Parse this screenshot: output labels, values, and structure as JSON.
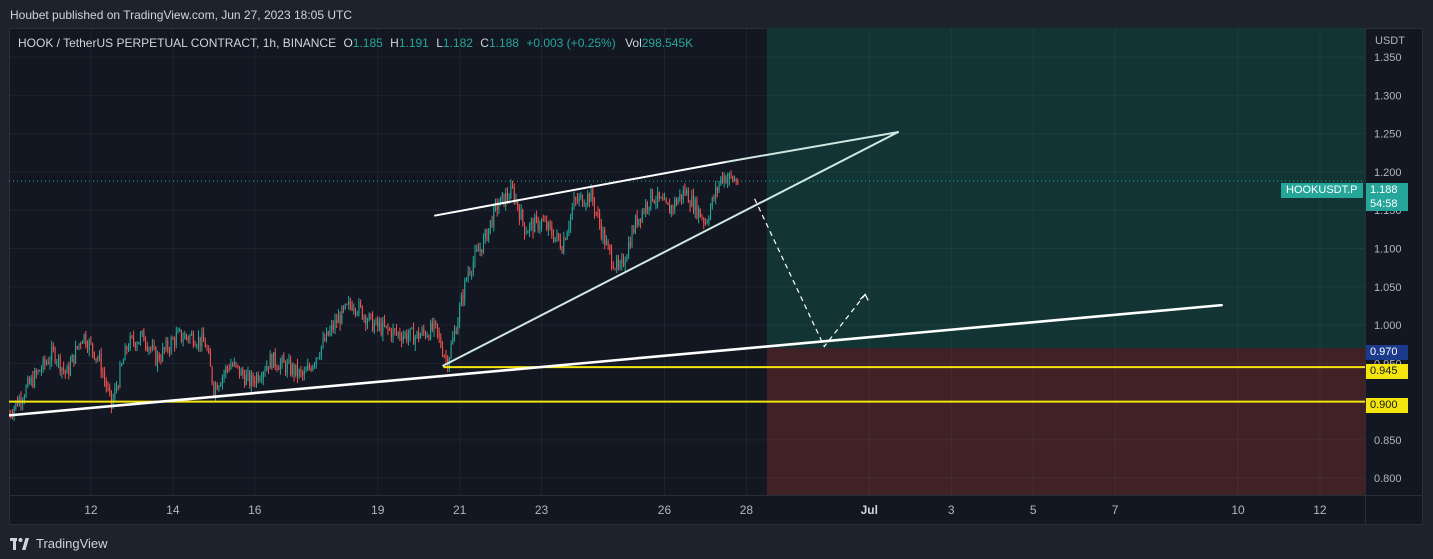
{
  "header": {
    "published_text": "Houbet published on TradingView.com, Jun 27, 2023 18:05 UTC"
  },
  "legend": {
    "symbol": "HOOK / TetherUS PERPETUAL CONTRACT, 1h, BINANCE",
    "o_label": "O",
    "o_value": "1.185",
    "h_label": "H",
    "h_value": "1.191",
    "l_label": "L",
    "l_value": "1.182",
    "c_label": "C",
    "c_value": "1.188",
    "change": "+0.003 (+0.25%)",
    "vol_label": "Vol",
    "vol_value": "298.545K"
  },
  "footer": {
    "brand": "TradingView"
  },
  "price_tags": {
    "symbol_tag": "HOOKUSDT.P",
    "last_price": "1.188",
    "countdown": "54:58",
    "stop_level": "0.970",
    "level_1": "0.945",
    "level_2": "0.900"
  },
  "colors": {
    "background": "#131722",
    "up": "#26a69a",
    "down": "#ef5350",
    "profit_zone": "#123434",
    "loss_zone": "#3f2126",
    "yellow_line": "#f5e50f",
    "white_line": "#ffffff"
  },
  "chart_data": {
    "type": "candlestick",
    "currency_label": "USDT",
    "y_ticks": [
      "1.350",
      "1.300",
      "1.250",
      "1.200",
      "1.150",
      "1.100",
      "1.050",
      "1.000",
      "0.950",
      "0.900",
      "0.850",
      "0.800"
    ],
    "y_range": [
      0.778,
      1.388
    ],
    "x_labels": [
      "12",
      "14",
      "16",
      "19",
      "21",
      "23",
      "26",
      "28",
      "Jul",
      "3",
      "5",
      "7",
      "10",
      "12"
    ],
    "x_label_days": [
      12,
      14,
      16,
      19,
      21,
      23,
      26,
      28,
      31,
      33,
      35,
      37,
      40,
      42
    ],
    "x_range_days": [
      10.0,
      43.1
    ],
    "bold_x_label": "Jul",
    "last_price": 1.188,
    "position": {
      "start_day": 28.5,
      "end_day": 43.1,
      "entry": 0.97,
      "target": 1.388,
      "stop": 0.778
    },
    "horizontal_levels": [
      {
        "price": 0.945,
        "from_day": 20.6,
        "color": "#f5e50f"
      },
      {
        "price": 0.9,
        "from_day": 10.0,
        "color": "#f5e50f"
      }
    ],
    "trendlines": [
      {
        "name": "long-support",
        "points": [
          [
            10.0,
            0.882
          ],
          [
            39.6,
            1.026
          ]
        ],
        "width": 2.6
      },
      {
        "name": "wedge-upper",
        "points": [
          [
            20.4,
            1.143
          ],
          [
            27.5,
            1.213
          ]
        ],
        "width": 2
      },
      {
        "name": "wedge-lower",
        "points": [
          [
            20.6,
            0.947
          ],
          [
            31.7,
            1.252
          ]
        ],
        "width": 2,
        "color": "#cfe8e3"
      },
      {
        "name": "wedge-top-ext",
        "points": [
          [
            27.5,
            1.213
          ],
          [
            31.7,
            1.252
          ]
        ],
        "width": 2,
        "color": "#cfe8e3"
      }
    ],
    "projection": [
      [
        28.2,
        1.165
      ],
      [
        29.9,
        0.972
      ],
      [
        30.9,
        1.04
      ]
    ],
    "price_anchors": [
      [
        10.0,
        0.885
      ],
      [
        10.6,
        0.93
      ],
      [
        11.1,
        0.965
      ],
      [
        11.4,
        0.935
      ],
      [
        11.8,
        0.988
      ],
      [
        12.2,
        0.955
      ],
      [
        12.5,
        0.895
      ],
      [
        12.9,
        0.975
      ],
      [
        13.3,
        0.985
      ],
      [
        13.6,
        0.955
      ],
      [
        14.1,
        0.985
      ],
      [
        14.5,
        0.985
      ],
      [
        14.8,
        0.975
      ],
      [
        15.0,
        0.918
      ],
      [
        15.4,
        0.95
      ],
      [
        15.9,
        0.925
      ],
      [
        16.4,
        0.955
      ],
      [
        16.8,
        0.945
      ],
      [
        17.2,
        0.932
      ],
      [
        17.6,
        0.97
      ],
      [
        18.0,
        1.005
      ],
      [
        18.4,
        1.03
      ],
      [
        18.9,
        1.0
      ],
      [
        19.4,
        0.99
      ],
      [
        19.9,
        0.985
      ],
      [
        20.4,
        0.995
      ],
      [
        20.7,
        0.952
      ],
      [
        20.9,
        0.995
      ],
      [
        21.2,
        1.07
      ],
      [
        21.6,
        1.11
      ],
      [
        21.9,
        1.155
      ],
      [
        22.3,
        1.175
      ],
      [
        22.6,
        1.125
      ],
      [
        23.0,
        1.135
      ],
      [
        23.5,
        1.105
      ],
      [
        23.8,
        1.16
      ],
      [
        24.2,
        1.17
      ],
      [
        24.6,
        1.1
      ],
      [
        24.9,
        1.068
      ],
      [
        25.3,
        1.135
      ],
      [
        25.7,
        1.17
      ],
      [
        26.1,
        1.15
      ],
      [
        26.5,
        1.175
      ],
      [
        27.0,
        1.135
      ],
      [
        27.4,
        1.195
      ],
      [
        27.8,
        1.188
      ]
    ]
  }
}
